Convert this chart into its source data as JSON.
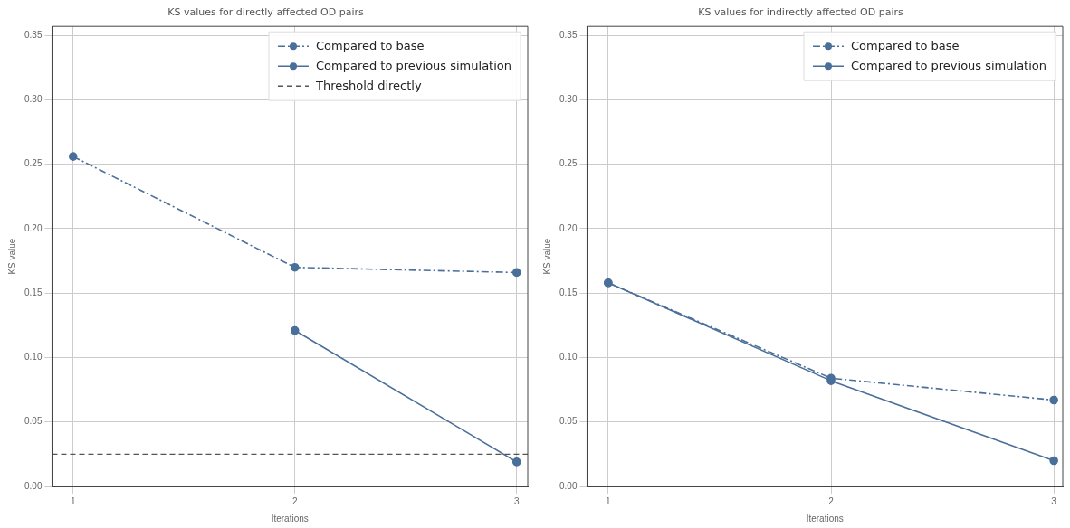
{
  "chart_data": [
    {
      "type": "line",
      "title": "KS values for directly affected OD pairs",
      "xlabel": "Iterations",
      "ylabel": "KS value",
      "x": [
        1,
        2,
        3
      ],
      "xlim": [
        0.905,
        3.05
      ],
      "xticks": [
        1,
        2,
        3
      ],
      "ylim": [
        0,
        0.357
      ],
      "yticks": [
        {
          "value": 0,
          "label": "0.00"
        },
        0.05,
        {
          "value": 0.1,
          "label": "0.10"
        },
        0.15,
        {
          "value": 0.2,
          "label": "0.20"
        },
        0.25,
        {
          "value": 0.3,
          "label": "0.30"
        },
        0.35
      ],
      "series": [
        {
          "name": "Compared to base",
          "color": "#4a6f99",
          "values": [
            0.256,
            0.17,
            0.166
          ],
          "line_style": "dashdot"
        },
        {
          "name": "Compared to previous simulation",
          "color": "#4a6f99",
          "values": [
            null,
            0.121,
            0.019
          ],
          "line_style": "solid"
        }
      ],
      "ref_lines": [
        {
          "axis": "y",
          "value": 0.025,
          "label": "Threshold directly",
          "color": "#555555",
          "line_style": "dashed"
        }
      ],
      "marker": "circle",
      "grid": true,
      "legend": "top right"
    },
    {
      "type": "line",
      "title": "KS values for indirectly affected OD pairs",
      "xlabel": "Iterations",
      "ylabel": "KS value",
      "x": [
        1,
        2,
        3
      ],
      "xlim": [
        0.905,
        3.04
      ],
      "xticks": [
        1,
        2,
        3
      ],
      "ylim": [
        0,
        0.357
      ],
      "yticks": [
        {
          "value": 0,
          "label": "0.00"
        },
        0.05,
        {
          "value": 0.1,
          "label": "0.10"
        },
        0.15,
        {
          "value": 0.2,
          "label": "0.20"
        },
        0.25,
        {
          "value": 0.3,
          "label": "0.30"
        },
        0.35
      ],
      "series": [
        {
          "name": "Compared to base",
          "color": "#4a6f99",
          "values": [
            0.158,
            0.084,
            0.067
          ],
          "line_style": "dashdot"
        },
        {
          "name": "Compared to previous simulation",
          "color": "#4a6f99",
          "values": [
            0.158,
            0.082,
            0.02
          ],
          "line_style": "solid"
        }
      ],
      "marker": "circle",
      "grid": true,
      "legend": "top right"
    }
  ]
}
